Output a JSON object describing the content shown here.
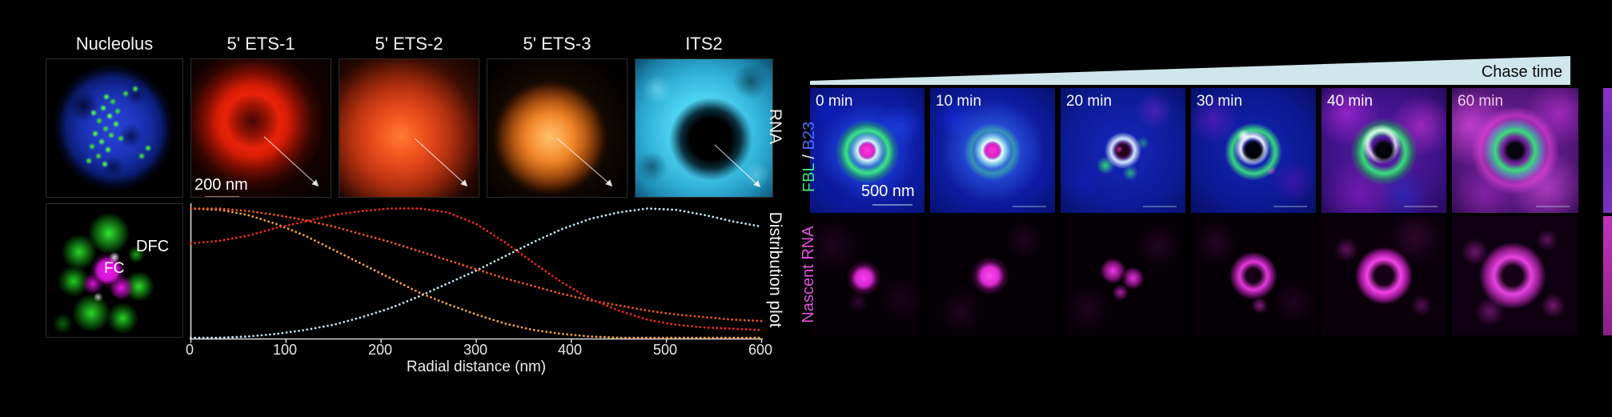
{
  "left_panel": {
    "columns": [
      {
        "title": "Nucleolus"
      },
      {
        "title": "5' ETS-1",
        "scale_bar": "200 nm"
      },
      {
        "title": "5' ETS-2"
      },
      {
        "title": "5' ETS-3"
      },
      {
        "title": "ITS2"
      }
    ],
    "row_label_top": "RNA",
    "row_label_bottom": "Distribution plot",
    "fc_image_labels": {
      "dfc": "DFC",
      "fc": "FC"
    }
  },
  "right_panel": {
    "header": "Chase time",
    "timepoints": [
      "0 min",
      "10 min",
      "20 min",
      "30 min",
      "40 min",
      "60 min"
    ],
    "row1_label": {
      "fbl": "FBL",
      "sep": " / ",
      "b23": "B23"
    },
    "row2_label": "Nascent RNA",
    "scale_bar": "500 nm",
    "colors": {
      "fbl": "#3de87e",
      "b23": "#4f6df5",
      "nascent_rna": "#e553e5",
      "chase_wedge": "#cfe6ea"
    }
  },
  "chart_data": {
    "type": "line",
    "style": "dotted",
    "title": "Distribution plot",
    "xlabel": "Radial distance (nm)",
    "ylabel": "",
    "xlim": [
      0,
      600
    ],
    "ylim": [
      0,
      1.05
    ],
    "grid": false,
    "legend_position": "none",
    "x_ticks": [
      0,
      100,
      200,
      300,
      400,
      500,
      600
    ],
    "x": [
      0,
      30,
      60,
      90,
      120,
      150,
      180,
      210,
      240,
      270,
      300,
      330,
      360,
      390,
      420,
      450,
      480,
      510,
      540,
      570,
      600
    ],
    "series": [
      {
        "name": "5' ETS-1",
        "color": "#f5281c",
        "values": [
          0.73,
          0.75,
          0.79,
          0.85,
          0.9,
          0.95,
          0.98,
          1.0,
          1.0,
          0.97,
          0.88,
          0.74,
          0.58,
          0.43,
          0.3,
          0.21,
          0.14,
          0.1,
          0.08,
          0.07,
          0.06
        ]
      },
      {
        "name": "5' ETS-2",
        "color": "#f2571f",
        "values": [
          1.0,
          1.0,
          0.98,
          0.95,
          0.91,
          0.86,
          0.8,
          0.74,
          0.67,
          0.6,
          0.53,
          0.46,
          0.4,
          0.34,
          0.29,
          0.25,
          0.21,
          0.18,
          0.16,
          0.14,
          0.13
        ]
      },
      {
        "name": "5' ETS-3",
        "color": "#f7a537",
        "values": [
          1.0,
          0.99,
          0.95,
          0.88,
          0.79,
          0.68,
          0.57,
          0.46,
          0.35,
          0.26,
          0.18,
          0.11,
          0.06,
          0.03,
          0.01,
          0.0,
          0.0,
          0.0,
          0.0,
          0.0,
          0.0
        ]
      },
      {
        "name": "ITS2",
        "color": "#c2e2f2",
        "values": [
          0.0,
          0.0,
          0.01,
          0.03,
          0.06,
          0.1,
          0.16,
          0.23,
          0.32,
          0.42,
          0.52,
          0.63,
          0.74,
          0.84,
          0.92,
          0.97,
          1.0,
          0.99,
          0.95,
          0.9,
          0.86
        ]
      }
    ]
  }
}
